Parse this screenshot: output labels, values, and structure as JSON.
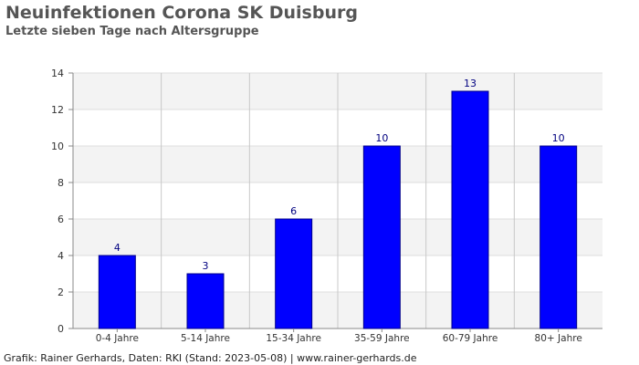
{
  "title": "Neuinfektionen Corona SK Duisburg",
  "subtitle": "Letzte sieben Tage nach Altersgruppe",
  "footer": "Grafik: Rainer Gerhards, Daten: RKI (Stand: 2023-05-08) | www.rainer-gerhards.de",
  "colors": {
    "bar": "#0000ff",
    "bar_stroke": "#00008b",
    "value_label": "#000080"
  },
  "chart_data": {
    "type": "bar",
    "title": "Neuinfektionen Corona SK Duisburg",
    "subtitle": "Letzte sieben Tage nach Altersgruppe",
    "categories": [
      "0-4 Jahre",
      "5-14 Jahre",
      "15-34 Jahre",
      "35-59 Jahre",
      "60-79 Jahre",
      "80+ Jahre"
    ],
    "values": [
      4,
      3,
      6,
      10,
      13,
      10
    ],
    "xlabel": "",
    "ylabel": "",
    "ylim": [
      0,
      14
    ],
    "yticks": [
      0,
      2,
      4,
      6,
      8,
      10,
      12,
      14
    ],
    "data_labels": true,
    "grid": true,
    "alternating_bands": true
  }
}
